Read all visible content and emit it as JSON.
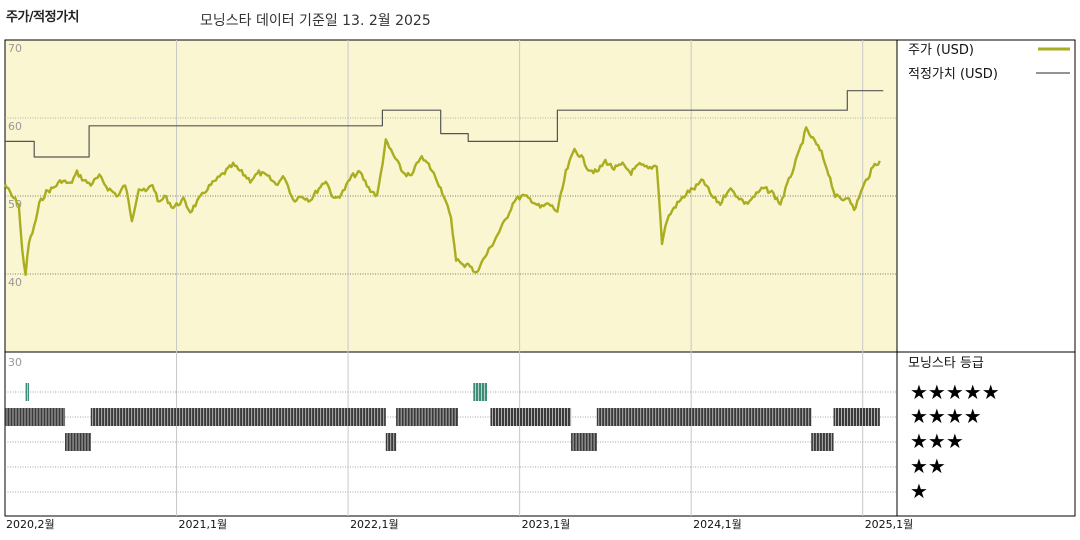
{
  "header": {
    "title": "주가/적정가치",
    "subtitle": "모닝스타 데이터 기준일 13. 2월 2025"
  },
  "colors": {
    "price": "#a9ad1f",
    "fair_value": "#555555",
    "panel_bg": "#faf6d2",
    "rating_bar": "#3a3a3a",
    "rating_bar_5": "#3d8d78"
  },
  "chart_data": {
    "type": "line",
    "title": "주가/적정가치",
    "y_ticks": [
      "70",
      "60",
      "50",
      "40"
    ],
    "y_tick_values": [
      70,
      60,
      50,
      40
    ],
    "ylim": [
      30,
      70
    ],
    "x_tick_labels": [
      "2020,2월",
      "2021,1월",
      "2022,1월",
      "2023,1월",
      "2024,1월",
      "2025,1월"
    ],
    "x_tick_dates": [
      2020.08,
      2021.0,
      2022.0,
      2023.0,
      2024.0,
      2025.0
    ],
    "xlim": [
      2020.0,
      2025.2
    ],
    "legend_position": "right",
    "series": [
      {
        "name": "주가 (USD)",
        "legend": "주가 (USD)",
        "color": "#a9ad1f",
        "points": [
          [
            2020.0,
            51.5
          ],
          [
            2020.04,
            50.0
          ],
          [
            2020.08,
            49.0
          ],
          [
            2020.1,
            43.0
          ],
          [
            2020.12,
            40.0
          ],
          [
            2020.14,
            44.0
          ],
          [
            2020.17,
            46.0
          ],
          [
            2020.2,
            49.0
          ],
          [
            2020.24,
            50.5
          ],
          [
            2020.28,
            51.0
          ],
          [
            2020.33,
            52.0
          ],
          [
            2020.38,
            51.5
          ],
          [
            2020.42,
            53.0
          ],
          [
            2020.46,
            52.0
          ],
          [
            2020.5,
            51.5
          ],
          [
            2020.55,
            52.5
          ],
          [
            2020.6,
            51.0
          ],
          [
            2020.66,
            50.0
          ],
          [
            2020.7,
            51.5
          ],
          [
            2020.74,
            47.0
          ],
          [
            2020.78,
            51.0
          ],
          [
            2020.82,
            50.5
          ],
          [
            2020.86,
            51.5
          ],
          [
            2020.9,
            49.0
          ],
          [
            2020.93,
            50.0
          ],
          [
            2020.98,
            48.5
          ],
          [
            2021.04,
            49.5
          ],
          [
            2021.08,
            48.0
          ],
          [
            2021.13,
            49.5
          ],
          [
            2021.18,
            51.0
          ],
          [
            2021.23,
            52.0
          ],
          [
            2021.28,
            53.0
          ],
          [
            2021.33,
            54.0
          ],
          [
            2021.38,
            53.0
          ],
          [
            2021.43,
            52.0
          ],
          [
            2021.48,
            53.0
          ],
          [
            2021.53,
            52.5
          ],
          [
            2021.58,
            51.5
          ],
          [
            2021.63,
            52.5
          ],
          [
            2021.68,
            49.5
          ],
          [
            2021.73,
            50.0
          ],
          [
            2021.78,
            49.5
          ],
          [
            2021.83,
            51.0
          ],
          [
            2021.87,
            52.0
          ],
          [
            2021.92,
            49.5
          ],
          [
            2021.97,
            50.5
          ],
          [
            2022.02,
            52.5
          ],
          [
            2022.07,
            53.0
          ],
          [
            2022.12,
            51.0
          ],
          [
            2022.17,
            50.0
          ],
          [
            2022.22,
            57.0
          ],
          [
            2022.27,
            55.0
          ],
          [
            2022.32,
            53.0
          ],
          [
            2022.37,
            52.5
          ],
          [
            2022.42,
            55.0
          ],
          [
            2022.47,
            54.0
          ],
          [
            2022.52,
            52.0
          ],
          [
            2022.56,
            50.0
          ],
          [
            2022.6,
            47.0
          ],
          [
            2022.63,
            42.0
          ],
          [
            2022.67,
            41.0
          ],
          [
            2022.7,
            41.5
          ],
          [
            2022.74,
            40.0
          ],
          [
            2022.78,
            41.5
          ],
          [
            2022.82,
            43.0
          ],
          [
            2022.87,
            45.0
          ],
          [
            2022.92,
            47.0
          ],
          [
            2022.97,
            49.5
          ],
          [
            2023.02,
            50.0
          ],
          [
            2023.07,
            49.5
          ],
          [
            2023.12,
            48.5
          ],
          [
            2023.17,
            49.0
          ],
          [
            2023.22,
            48.0
          ],
          [
            2023.27,
            53.0
          ],
          [
            2023.32,
            56.0
          ],
          [
            2023.36,
            55.0
          ],
          [
            2023.4,
            53.5
          ],
          [
            2023.45,
            53.0
          ],
          [
            2023.5,
            54.5
          ],
          [
            2023.55,
            53.5
          ],
          [
            2023.6,
            54.0
          ],
          [
            2023.65,
            53.0
          ],
          [
            2023.7,
            54.0
          ],
          [
            2023.75,
            53.5
          ],
          [
            2023.8,
            54.0
          ],
          [
            2023.83,
            44.0
          ],
          [
            2023.86,
            47.0
          ],
          [
            2023.9,
            48.5
          ],
          [
            2023.94,
            49.5
          ],
          [
            2023.98,
            50.5
          ],
          [
            2024.02,
            51.0
          ],
          [
            2024.07,
            52.0
          ],
          [
            2024.12,
            50.0
          ],
          [
            2024.17,
            49.0
          ],
          [
            2024.22,
            51.0
          ],
          [
            2024.27,
            50.0
          ],
          [
            2024.32,
            49.0
          ],
          [
            2024.37,
            50.0
          ],
          [
            2024.42,
            51.0
          ],
          [
            2024.47,
            50.5
          ],
          [
            2024.52,
            49.0
          ],
          [
            2024.57,
            52.0
          ],
          [
            2024.62,
            55.0
          ],
          [
            2024.67,
            58.5
          ],
          [
            2024.72,
            57.0
          ],
          [
            2024.76,
            55.5
          ],
          [
            2024.8,
            53.0
          ],
          [
            2024.84,
            50.0
          ],
          [
            2024.88,
            49.5
          ],
          [
            2024.92,
            50.0
          ],
          [
            2024.95,
            48.0
          ],
          [
            2024.98,
            50.0
          ],
          [
            2025.02,
            52.0
          ],
          [
            2025.07,
            54.0
          ],
          [
            2025.1,
            54.5
          ]
        ]
      },
      {
        "name": "적정가치 (USD)",
        "legend": "적정가치 (USD)",
        "color": "#555555",
        "points": [
          [
            2020.0,
            57.0
          ],
          [
            2020.17,
            57.0
          ],
          [
            2020.17,
            55.0
          ],
          [
            2020.49,
            55.0
          ],
          [
            2020.49,
            59.0
          ],
          [
            2022.2,
            59.0
          ],
          [
            2022.2,
            61.0
          ],
          [
            2022.54,
            61.0
          ],
          [
            2022.54,
            58.0
          ],
          [
            2022.7,
            58.0
          ],
          [
            2022.7,
            57.0
          ],
          [
            2023.22,
            57.0
          ],
          [
            2023.22,
            61.0
          ],
          [
            2024.91,
            61.0
          ],
          [
            2024.91,
            63.5
          ],
          [
            2025.12,
            63.5
          ]
        ]
      }
    ],
    "rating": {
      "label": "모닝스타 등급",
      "stars": [
        "★★★★★",
        "★★★★",
        "★★★",
        "★★",
        "★"
      ],
      "tick": "30",
      "segments": [
        {
          "level": 5,
          "from": 2020.12,
          "to": 2020.14
        },
        {
          "level": 5,
          "from": 2022.73,
          "to": 2022.81
        },
        {
          "level": 4,
          "from": 2020.0,
          "to": 2020.35
        },
        {
          "level": 4,
          "from": 2020.5,
          "to": 2022.22
        },
        {
          "level": 4,
          "from": 2022.28,
          "to": 2022.64
        },
        {
          "level": 4,
          "from": 2022.83,
          "to": 2023.3
        },
        {
          "level": 4,
          "from": 2023.45,
          "to": 2024.7
        },
        {
          "level": 4,
          "from": 2024.83,
          "to": 2025.1
        },
        {
          "level": 3,
          "from": 2020.35,
          "to": 2020.5
        },
        {
          "level": 3,
          "from": 2022.22,
          "to": 2022.28
        },
        {
          "level": 3,
          "from": 2023.3,
          "to": 2023.45
        },
        {
          "level": 3,
          "from": 2024.7,
          "to": 2024.83
        }
      ]
    }
  }
}
